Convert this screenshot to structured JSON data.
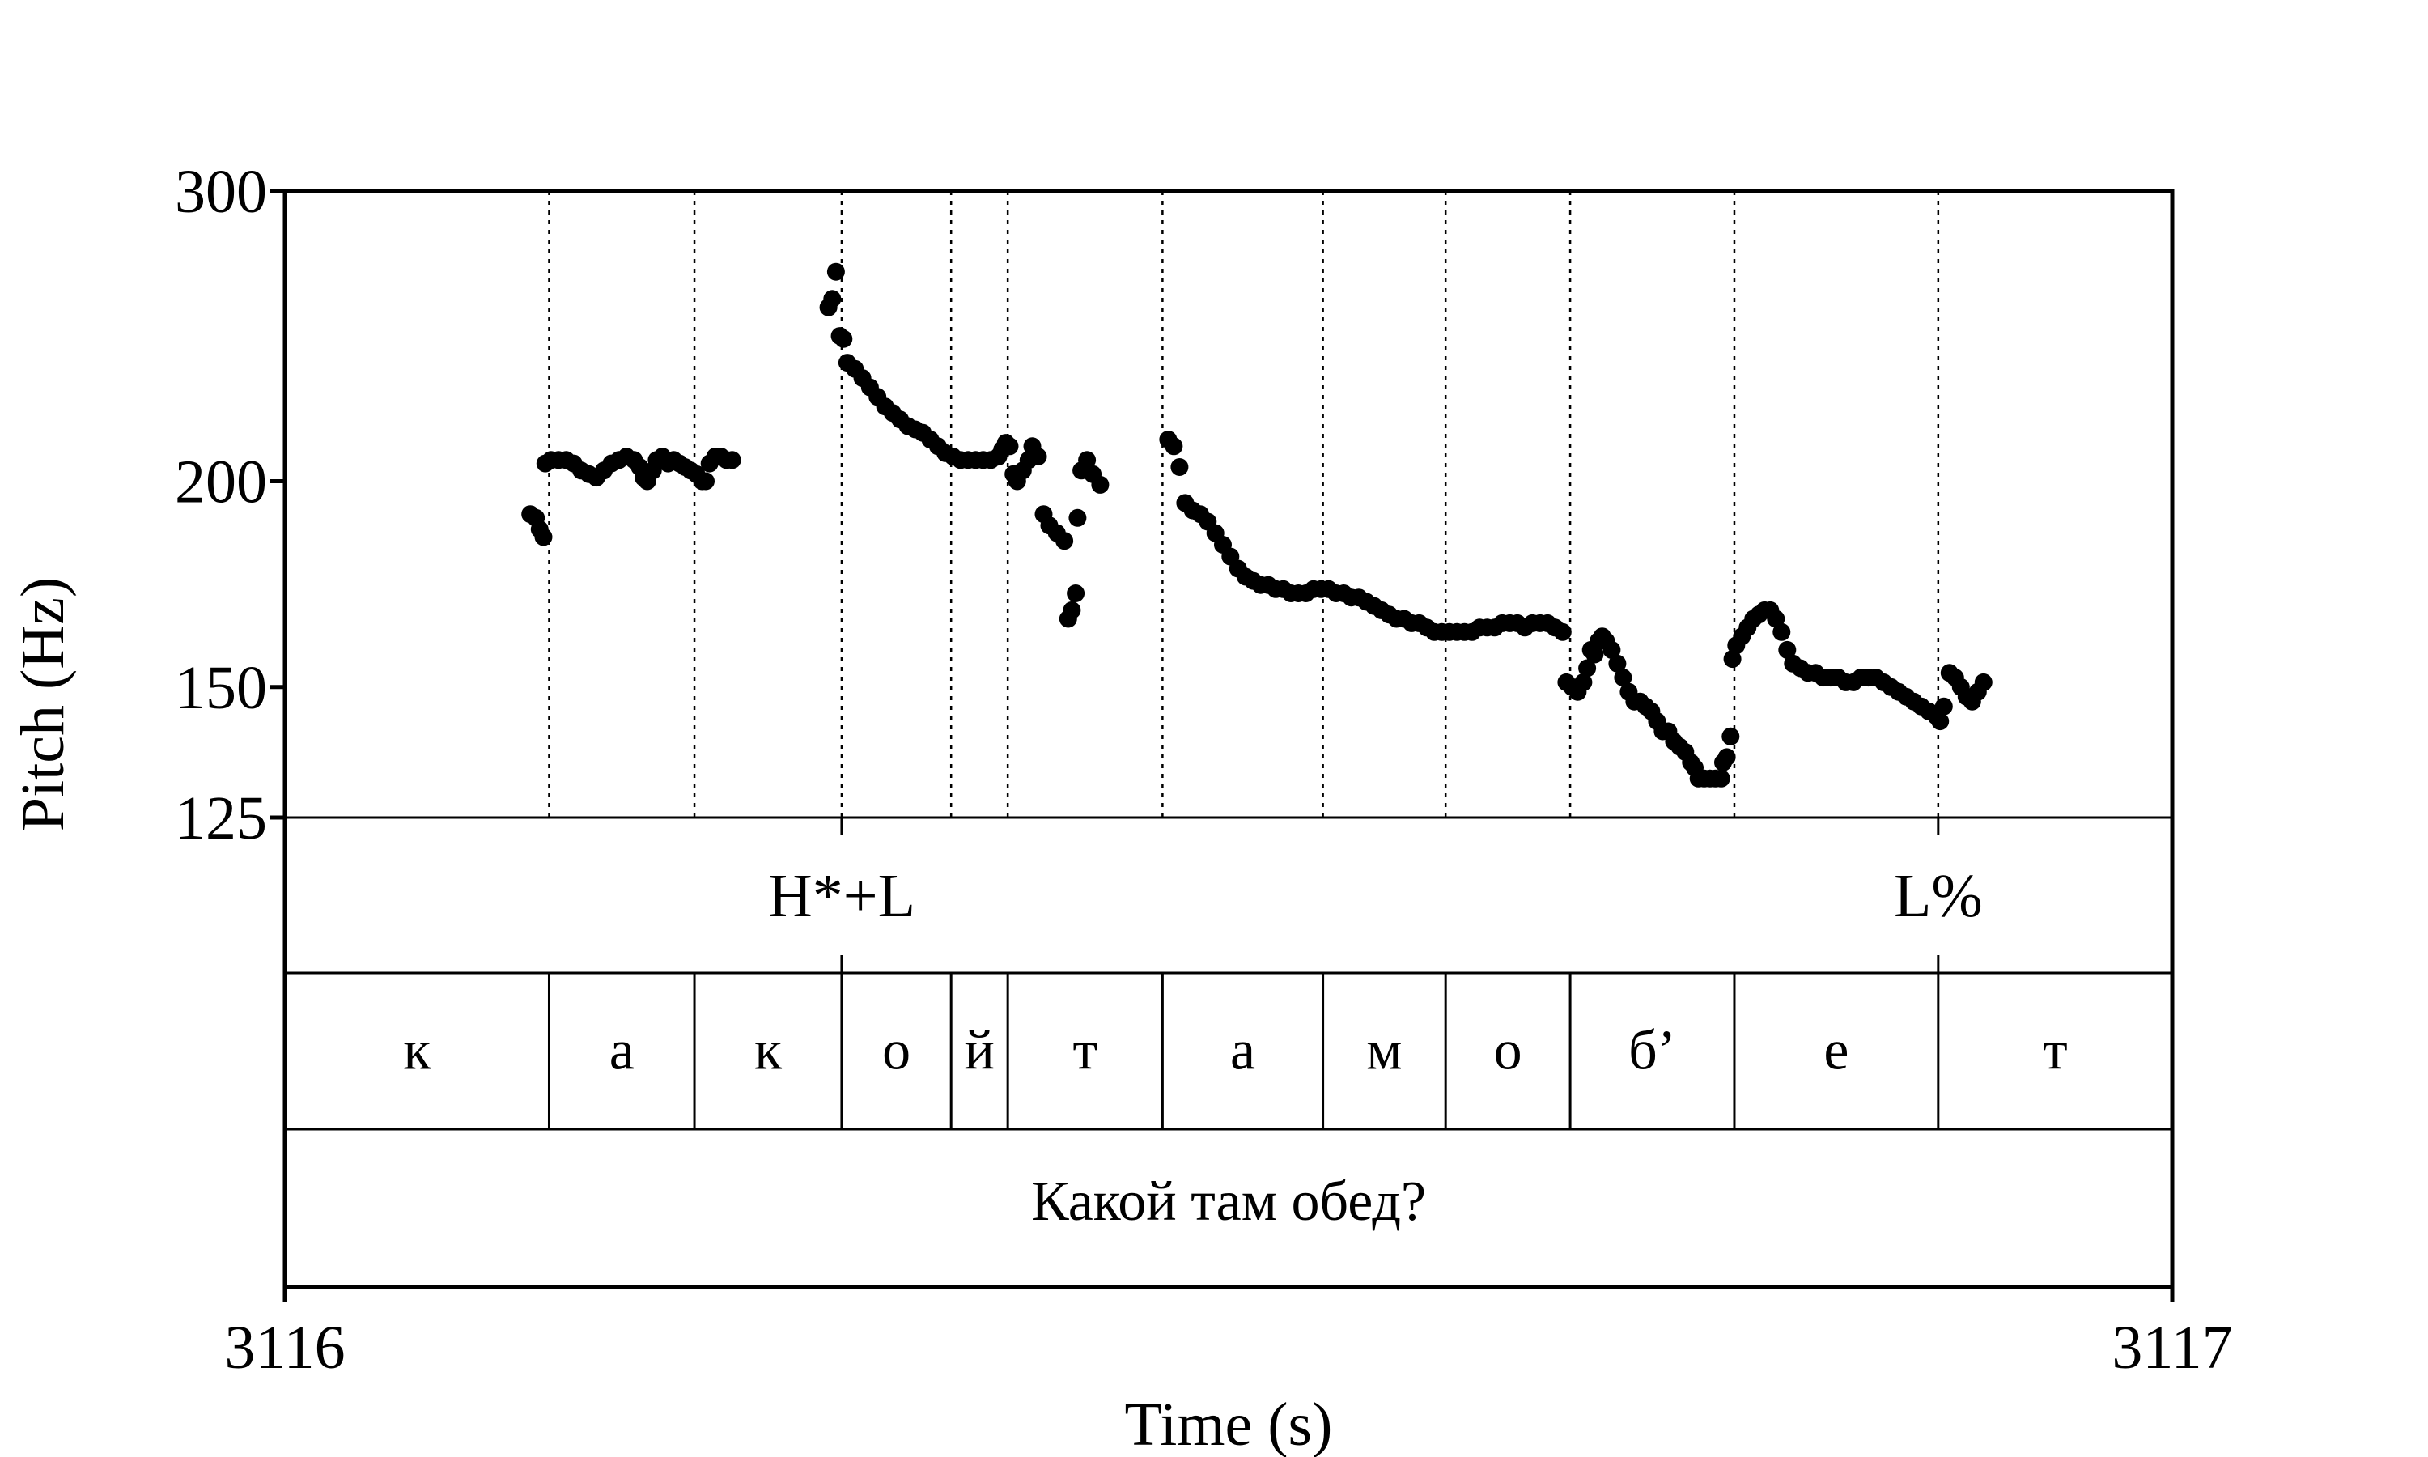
{
  "chart_data": {
    "type": "scatter",
    "xlabel": "Time (s)",
    "ylabel": "Pitch (Hz)",
    "xlim": [
      3116,
      3117
    ],
    "ylim": [
      125,
      300
    ],
    "y_scale": "log",
    "grid": false,
    "x_ticks": [
      {
        "value": 3116,
        "label": "3116"
      },
      {
        "value": 3117,
        "label": "3117"
      }
    ],
    "y_ticks": [
      {
        "value": 125,
        "label": "125"
      },
      {
        "value": 150,
        "label": "150"
      },
      {
        "value": 200,
        "label": "200"
      },
      {
        "value": 300,
        "label": "300"
      }
    ],
    "segment_boundaries": [
      3116.14,
      3116.217,
      3116.295,
      3116.353,
      3116.383,
      3116.465,
      3116.55,
      3116.615,
      3116.681,
      3116.768,
      3116.876
    ],
    "tiers": {
      "tones": [
        {
          "time": 3116.295,
          "label": "H*+L"
        },
        {
          "time": 3116.876,
          "label": "L%"
        }
      ],
      "segments": [
        {
          "start": 3116.0,
          "end": 3116.14,
          "label": "к"
        },
        {
          "start": 3116.14,
          "end": 3116.217,
          "label": "а"
        },
        {
          "start": 3116.217,
          "end": 3116.295,
          "label": "к"
        },
        {
          "start": 3116.295,
          "end": 3116.353,
          "label": "о"
        },
        {
          "start": 3116.353,
          "end": 3116.383,
          "label": "й"
        },
        {
          "start": 3116.383,
          "end": 3116.465,
          "label": "т"
        },
        {
          "start": 3116.465,
          "end": 3116.55,
          "label": "а"
        },
        {
          "start": 3116.55,
          "end": 3116.615,
          "label": "м"
        },
        {
          "start": 3116.615,
          "end": 3116.681,
          "label": "о"
        },
        {
          "start": 3116.681,
          "end": 3116.768,
          "label": "б’"
        },
        {
          "start": 3116.768,
          "end": 3116.876,
          "label": "е"
        },
        {
          "start": 3116.876,
          "end": 3117.0,
          "label": "т"
        }
      ],
      "utterance": "Какой там обед?"
    },
    "pitch_points": [
      [
        3116.13,
        191
      ],
      [
        3116.133,
        190
      ],
      [
        3116.135,
        187
      ],
      [
        3116.137,
        185
      ],
      [
        3116.138,
        205
      ],
      [
        3116.141,
        206
      ],
      [
        3116.145,
        206
      ],
      [
        3116.149,
        206
      ],
      [
        3116.153,
        205
      ],
      [
        3116.157,
        203
      ],
      [
        3116.161,
        202
      ],
      [
        3116.165,
        201
      ],
      [
        3116.169,
        203
      ],
      [
        3116.173,
        205
      ],
      [
        3116.177,
        206
      ],
      [
        3116.181,
        207
      ],
      [
        3116.185,
        206
      ],
      [
        3116.188,
        204
      ],
      [
        3116.19,
        201
      ],
      [
        3116.192,
        200
      ],
      [
        3116.195,
        203
      ],
      [
        3116.197,
        206
      ],
      [
        3116.2,
        207
      ],
      [
        3116.203,
        205
      ],
      [
        3116.206,
        206
      ],
      [
        3116.209,
        205
      ],
      [
        3116.212,
        204
      ],
      [
        3116.215,
        203
      ],
      [
        3116.218,
        202
      ],
      [
        3116.221,
        200
      ],
      [
        3116.223,
        200
      ],
      [
        3116.225,
        205
      ],
      [
        3116.228,
        207
      ],
      [
        3116.231,
        207
      ],
      [
        3116.234,
        206
      ],
      [
        3116.237,
        206
      ],
      [
        3116.288,
        255
      ],
      [
        3116.29,
        258
      ],
      [
        3116.292,
        268
      ],
      [
        3116.294,
        245
      ],
      [
        3116.296,
        244
      ],
      [
        3116.298,
        236
      ],
      [
        3116.302,
        234
      ],
      [
        3116.306,
        231
      ],
      [
        3116.31,
        228
      ],
      [
        3116.314,
        225
      ],
      [
        3116.318,
        222
      ],
      [
        3116.322,
        220
      ],
      [
        3116.326,
        218
      ],
      [
        3116.33,
        216
      ],
      [
        3116.334,
        215
      ],
      [
        3116.338,
        214
      ],
      [
        3116.342,
        212
      ],
      [
        3116.346,
        210
      ],
      [
        3116.35,
        208
      ],
      [
        3116.354,
        207
      ],
      [
        3116.358,
        206
      ],
      [
        3116.362,
        206
      ],
      [
        3116.366,
        206
      ],
      [
        3116.37,
        206
      ],
      [
        3116.374,
        206
      ],
      [
        3116.378,
        207
      ],
      [
        3116.38,
        209
      ],
      [
        3116.382,
        211
      ],
      [
        3116.384,
        210
      ],
      [
        3116.386,
        202
      ],
      [
        3116.388,
        200
      ],
      [
        3116.391,
        203
      ],
      [
        3116.394,
        206
      ],
      [
        3116.396,
        210
      ],
      [
        3116.399,
        207
      ],
      [
        3116.402,
        191
      ],
      [
        3116.405,
        188
      ],
      [
        3116.409,
        186
      ],
      [
        3116.413,
        184
      ],
      [
        3116.415,
        165
      ],
      [
        3116.417,
        167
      ],
      [
        3116.419,
        171
      ],
      [
        3116.42,
        190
      ],
      [
        3116.422,
        203
      ],
      [
        3116.425,
        206
      ],
      [
        3116.428,
        202
      ],
      [
        3116.432,
        199
      ],
      [
        3116.468,
        212
      ],
      [
        3116.471,
        210
      ],
      [
        3116.474,
        204
      ],
      [
        3116.477,
        194
      ],
      [
        3116.481,
        192
      ],
      [
        3116.485,
        191
      ],
      [
        3116.489,
        189
      ],
      [
        3116.493,
        186
      ],
      [
        3116.497,
        183
      ],
      [
        3116.501,
        180
      ],
      [
        3116.505,
        177
      ],
      [
        3116.509,
        175
      ],
      [
        3116.513,
        174
      ],
      [
        3116.517,
        173
      ],
      [
        3116.521,
        173
      ],
      [
        3116.525,
        172
      ],
      [
        3116.529,
        172
      ],
      [
        3116.533,
        171
      ],
      [
        3116.537,
        171
      ],
      [
        3116.541,
        171
      ],
      [
        3116.545,
        172
      ],
      [
        3116.549,
        172
      ],
      [
        3116.553,
        172
      ],
      [
        3116.557,
        171
      ],
      [
        3116.561,
        171
      ],
      [
        3116.565,
        170
      ],
      [
        3116.569,
        170
      ],
      [
        3116.573,
        169
      ],
      [
        3116.577,
        168
      ],
      [
        3116.581,
        167
      ],
      [
        3116.585,
        166
      ],
      [
        3116.589,
        165
      ],
      [
        3116.593,
        165
      ],
      [
        3116.597,
        164
      ],
      [
        3116.601,
        164
      ],
      [
        3116.605,
        163
      ],
      [
        3116.609,
        162
      ],
      [
        3116.613,
        162
      ],
      [
        3116.617,
        162
      ],
      [
        3116.621,
        162
      ],
      [
        3116.625,
        162
      ],
      [
        3116.629,
        162
      ],
      [
        3116.633,
        163
      ],
      [
        3116.637,
        163
      ],
      [
        3116.641,
        163
      ],
      [
        3116.645,
        164
      ],
      [
        3116.649,
        164
      ],
      [
        3116.653,
        164
      ],
      [
        3116.657,
        163
      ],
      [
        3116.661,
        164
      ],
      [
        3116.665,
        164
      ],
      [
        3116.669,
        164
      ],
      [
        3116.673,
        163
      ],
      [
        3116.677,
        162
      ],
      [
        3116.679,
        151
      ],
      [
        3116.682,
        150
      ],
      [
        3116.685,
        149
      ],
      [
        3116.688,
        151
      ],
      [
        3116.69,
        154
      ],
      [
        3116.692,
        158
      ],
      [
        3116.694,
        157
      ],
      [
        3116.696,
        160
      ],
      [
        3116.698,
        161
      ],
      [
        3116.7,
        160
      ],
      [
        3116.703,
        158
      ],
      [
        3116.706,
        155
      ],
      [
        3116.709,
        152
      ],
      [
        3116.712,
        149
      ],
      [
        3116.715,
        147
      ],
      [
        3116.718,
        147
      ],
      [
        3116.721,
        146
      ],
      [
        3116.724,
        145
      ],
      [
        3116.727,
        143
      ],
      [
        3116.73,
        141
      ],
      [
        3116.733,
        141
      ],
      [
        3116.736,
        139
      ],
      [
        3116.739,
        138
      ],
      [
        3116.742,
        137
      ],
      [
        3116.745,
        135
      ],
      [
        3116.747,
        134
      ],
      [
        3116.749,
        132
      ],
      [
        3116.752,
        132
      ],
      [
        3116.755,
        132
      ],
      [
        3116.758,
        132
      ],
      [
        3116.761,
        132
      ],
      [
        3116.762,
        135
      ],
      [
        3116.764,
        136
      ],
      [
        3116.766,
        140
      ],
      [
        3116.767,
        156
      ],
      [
        3116.769,
        159
      ],
      [
        3116.772,
        161
      ],
      [
        3116.775,
        163
      ],
      [
        3116.778,
        165
      ],
      [
        3116.781,
        166
      ],
      [
        3116.784,
        167
      ],
      [
        3116.787,
        167
      ],
      [
        3116.79,
        165
      ],
      [
        3116.793,
        162
      ],
      [
        3116.796,
        158
      ],
      [
        3116.799,
        155
      ],
      [
        3116.803,
        154
      ],
      [
        3116.807,
        153
      ],
      [
        3116.811,
        153
      ],
      [
        3116.815,
        152
      ],
      [
        3116.819,
        152
      ],
      [
        3116.823,
        152
      ],
      [
        3116.827,
        151
      ],
      [
        3116.831,
        151
      ],
      [
        3116.835,
        152
      ],
      [
        3116.839,
        152
      ],
      [
        3116.843,
        152
      ],
      [
        3116.847,
        151
      ],
      [
        3116.851,
        150
      ],
      [
        3116.855,
        149
      ],
      [
        3116.859,
        148
      ],
      [
        3116.863,
        147
      ],
      [
        3116.867,
        146
      ],
      [
        3116.871,
        145
      ],
      [
        3116.875,
        144
      ],
      [
        3116.877,
        143
      ],
      [
        3116.879,
        146
      ],
      [
        3116.882,
        153
      ],
      [
        3116.885,
        152
      ],
      [
        3116.888,
        150
      ],
      [
        3116.891,
        148
      ],
      [
        3116.894,
        147
      ],
      [
        3116.897,
        149
      ],
      [
        3116.9,
        151
      ]
    ]
  }
}
